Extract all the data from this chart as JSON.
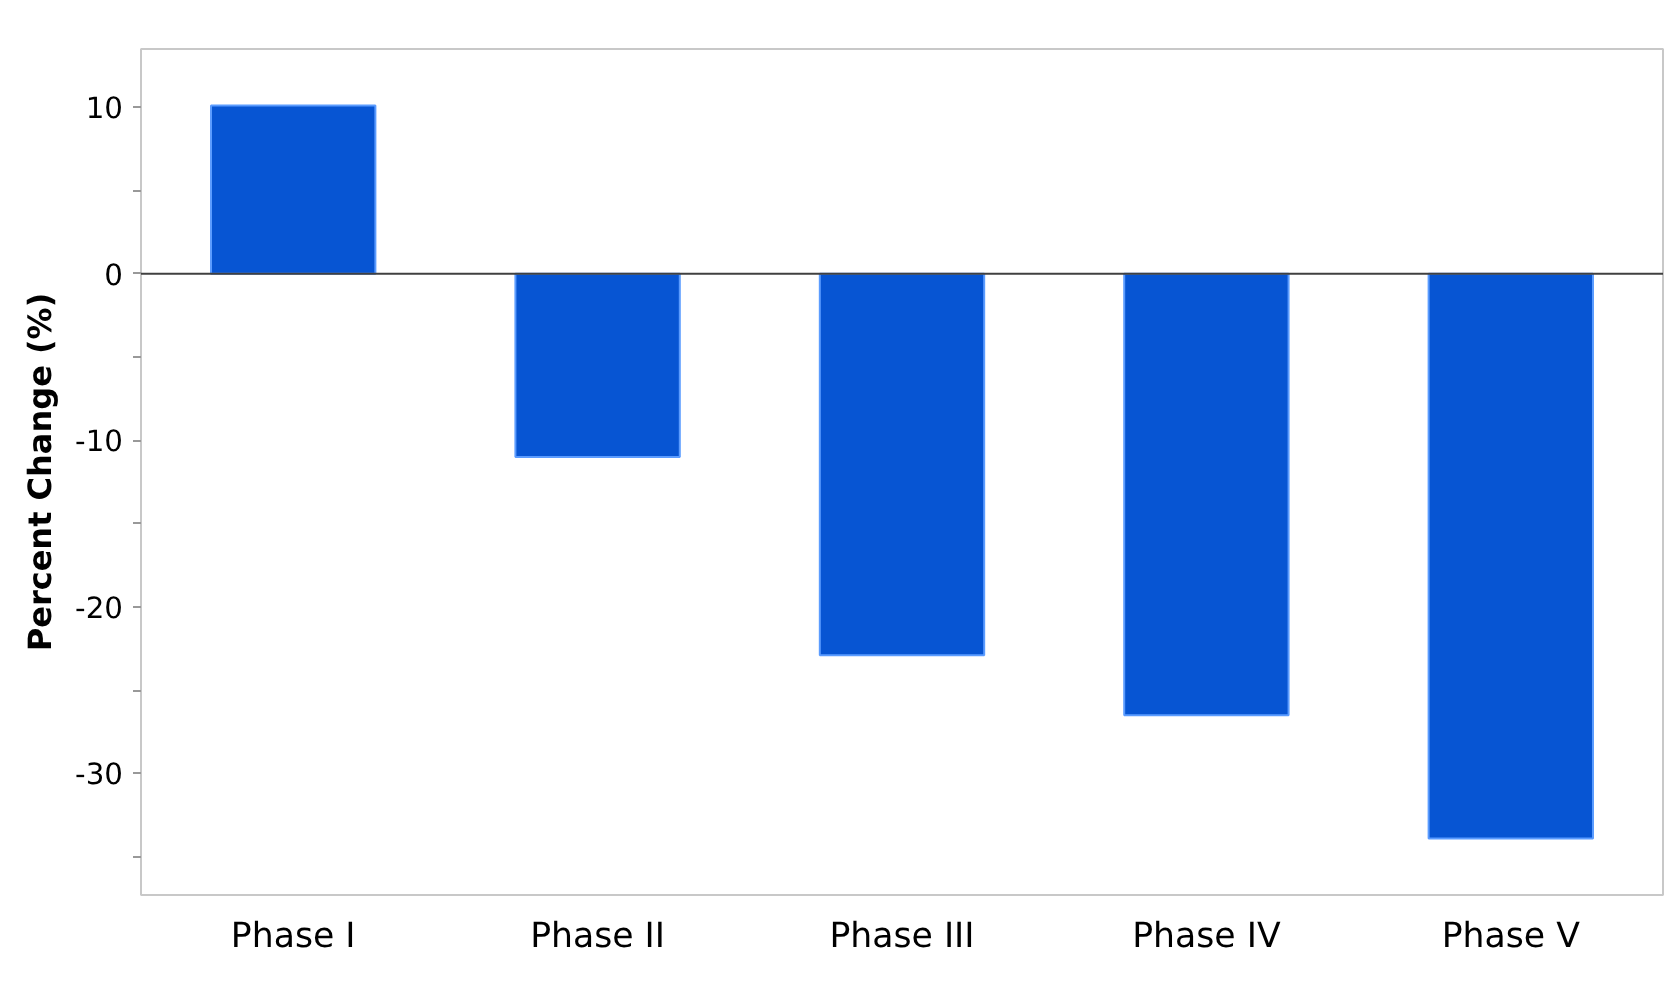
{
  "chart_data": {
    "type": "bar",
    "ylabel": "Percent Change (%)",
    "categories": [
      "Phase I",
      "Phase II",
      "Phase III",
      "Phase IV",
      "Phase V"
    ],
    "values": [
      10.1,
      -11,
      -22.9,
      -26.5,
      -33.9
    ],
    "color": "#0755d3",
    "ylim": [
      -37.3,
      13.5
    ],
    "yticks": [
      {
        "value": -35,
        "label": null
      },
      -30,
      {
        "value": -25,
        "label": null
      },
      -20,
      {
        "value": -15,
        "label": null
      },
      -10,
      {
        "value": -5,
        "label": null
      },
      0,
      {
        "value": 5,
        "label": null
      },
      10
    ],
    "ref_lines": [
      {
        "axis": "y",
        "value": 0,
        "color": "#404040"
      }
    ],
    "grid": false
  }
}
